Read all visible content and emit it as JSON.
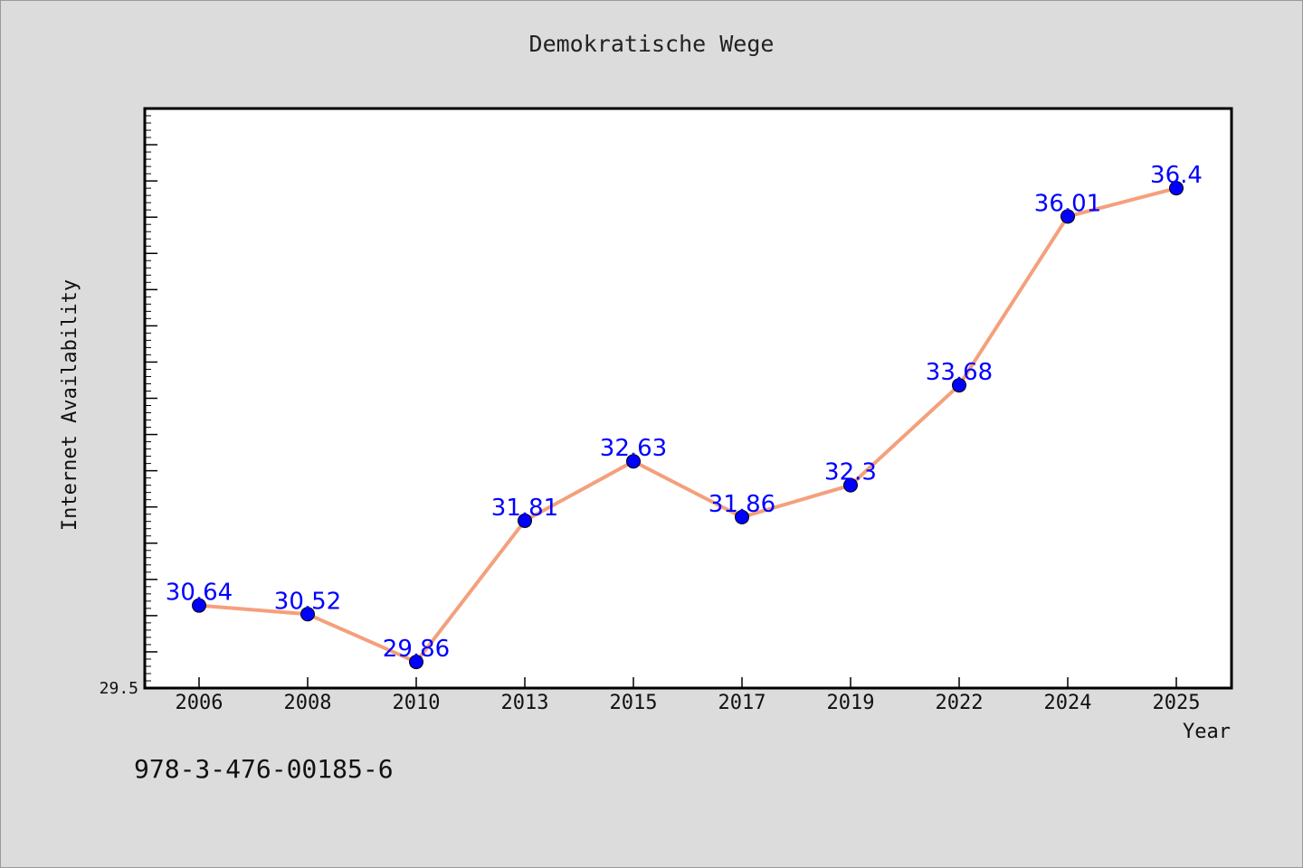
{
  "chart_data": {
    "type": "line",
    "title": "Demokratische Wege",
    "xlabel": "Year",
    "ylabel": "Internet Availability",
    "categories": [
      "2006",
      "2008",
      "2010",
      "2013",
      "2015",
      "2017",
      "2019",
      "2022",
      "2024",
      "2025"
    ],
    "series": [
      {
        "values": [
          30.64,
          30.52,
          29.86,
          31.81,
          32.63,
          31.86,
          32.3,
          33.68,
          36.01,
          36.4
        ]
      }
    ],
    "data_labels": [
      "30.64",
      "30.52",
      "29.86",
      "31.81",
      "32.63",
      "31.86",
      "32.3",
      "33.68",
      "36.01",
      "36.4"
    ],
    "y_tick_label": "29.5",
    "ylim": [
      29.5,
      37.5
    ],
    "grid": false,
    "line_color": "#f4a07c",
    "marker_color": "#0000ff",
    "label_color": "#0000ff"
  },
  "footer": {
    "isbn": "978-3-476-00185-6"
  }
}
